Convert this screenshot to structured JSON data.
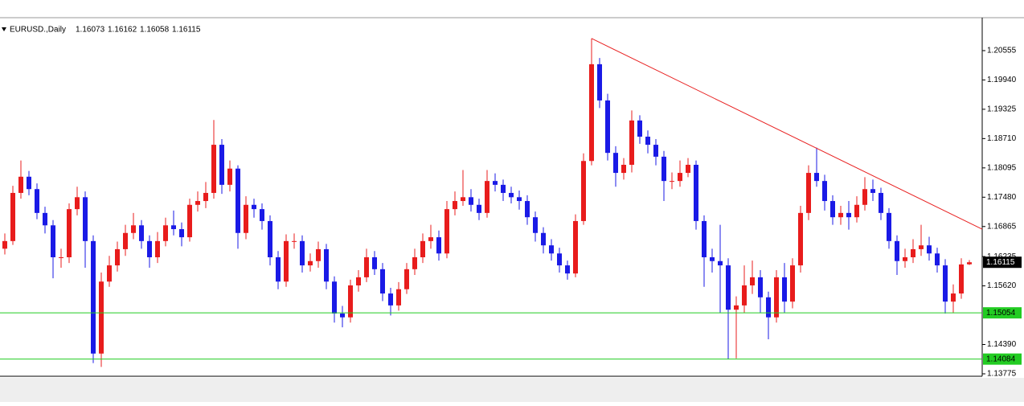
{
  "chart_data": {
    "type": "candlestick",
    "title": "EURUSD.,Daily",
    "open": [
      1.164,
      1.1656,
      1.1757,
      1.1791,
      1.1765,
      1.1715,
      1.1689,
      1.1622,
      1.1622,
      1.1723,
      1.1748,
      1.1656,
      1.142,
      1.1571,
      1.1605,
      1.1639,
      1.1673,
      1.1689,
      1.1656,
      1.1622,
      1.1656,
      1.1689,
      1.1681,
      1.1664,
      1.1732,
      1.174,
      1.1757,
      1.1858,
      1.1774,
      1.1808,
      1.1673,
      1.1732,
      1.1723,
      1.1698,
      1.1622,
      1.1571,
      1.1656,
      1.1656,
      1.1605,
      1.1614,
      1.1639,
      1.1571,
      1.1504,
      1.1496,
      1.1563,
      1.158,
      1.1622,
      1.1597,
      1.1546,
      1.1521,
      1.1555,
      1.1597,
      1.1622,
      1.1656,
      1.1664,
      1.163,
      1.1723,
      1.174,
      1.1748,
      1.1732,
      1.1715,
      1.1782,
      1.1774,
      1.1757,
      1.1748,
      1.174,
      1.1706,
      1.1673,
      1.1647,
      1.163,
      1.1605,
      1.1588,
      1.1698,
      1.1824,
      1.2027,
      1.1951,
      1.1841,
      1.1799,
      1.1816,
      1.1909,
      1.1875,
      1.1858,
      1.1833,
      1.1782,
      1.1782,
      1.1799,
      1.1816,
      1.1698,
      1.1622,
      1.1614,
      1.1605,
      1.1512,
      1.1521,
      1.1563,
      1.158,
      1.1538,
      1.1496,
      1.158,
      1.1529,
      1.1605,
      1.1715,
      1.1799,
      1.1782,
      1.174,
      1.1706,
      1.1715,
      1.1706,
      1.1732,
      1.1765,
      1.1757,
      1.1715,
      1.1656,
      1.1614,
      1.1622,
      1.1639,
      1.1647,
      1.163,
      1.1605,
      1.1529,
      1.1546,
      1.16073
    ],
    "high": [
      1.1672,
      1.1772,
      1.1825,
      1.1803,
      1.1777,
      1.1728,
      1.17,
      1.164,
      1.1735,
      1.177,
      1.176,
      1.1668,
      1.159,
      1.1625,
      1.1655,
      1.169,
      1.1715,
      1.17,
      1.1668,
      1.1675,
      1.1705,
      1.172,
      1.1695,
      1.1745,
      1.176,
      1.178,
      1.191,
      1.187,
      1.1825,
      1.1815,
      1.175,
      1.1745,
      1.1735,
      1.171,
      1.1635,
      1.167,
      1.1672,
      1.1668,
      1.163,
      1.1655,
      1.165,
      1.1582,
      1.152,
      1.1575,
      1.1595,
      1.164,
      1.1635,
      1.161,
      1.1558,
      1.157,
      1.161,
      1.164,
      1.1672,
      1.169,
      1.1678,
      1.174,
      1.176,
      1.1805,
      1.1765,
      1.1745,
      1.1805,
      1.1798,
      1.1785,
      1.177,
      1.1762,
      1.1752,
      1.1718,
      1.1685,
      1.166,
      1.1642,
      1.1615,
      1.1712,
      1.184,
      1.2081,
      1.204,
      1.1965,
      1.1855,
      1.183,
      1.193,
      1.192,
      1.1888,
      1.187,
      1.1845,
      1.18,
      1.1825,
      1.183,
      1.1825,
      1.171,
      1.164,
      1.169,
      1.162,
      1.154,
      1.1605,
      1.1615,
      1.1595,
      1.155,
      1.1595,
      1.161,
      1.162,
      1.173,
      1.1815,
      1.1852,
      1.1795,
      1.1752,
      1.173,
      1.174,
      1.175,
      1.179,
      1.1785,
      1.1768,
      1.1725,
      1.1668,
      1.164,
      1.166,
      1.169,
      1.1665,
      1.1642,
      1.1618,
      1.1565,
      1.162,
      1.16162
    ],
    "low": [
      1.1628,
      1.1648,
      1.1745,
      1.1752,
      1.1702,
      1.1672,
      1.1578,
      1.16,
      1.161,
      1.171,
      1.16,
      1.14,
      1.1392,
      1.156,
      1.1592,
      1.1625,
      1.166,
      1.164,
      1.16,
      1.161,
      1.1645,
      1.1668,
      1.1645,
      1.1655,
      1.1718,
      1.1725,
      1.1745,
      1.1755,
      1.176,
      1.164,
      1.166,
      1.1705,
      1.168,
      1.1605,
      1.1555,
      1.156,
      1.164,
      1.159,
      1.1592,
      1.16,
      1.1555,
      1.1485,
      1.1475,
      1.1485,
      1.155,
      1.157,
      1.1585,
      1.153,
      1.15,
      1.151,
      1.1545,
      1.1585,
      1.161,
      1.164,
      1.1615,
      1.162,
      1.171,
      1.173,
      1.1718,
      1.17,
      1.1705,
      1.176,
      1.174,
      1.1735,
      1.1722,
      1.169,
      1.1655,
      1.163,
      1.1615,
      1.159,
      1.1575,
      1.158,
      1.169,
      1.1815,
      1.1935,
      1.1825,
      1.177,
      1.1785,
      1.18,
      1.186,
      1.184,
      1.1815,
      1.174,
      1.1765,
      1.177,
      1.179,
      1.168,
      1.156,
      1.159,
      1.1505,
      1.1408,
      1.141,
      1.1505,
      1.1545,
      1.1505,
      1.145,
      1.1485,
      1.1505,
      1.1515,
      1.159,
      1.17,
      1.177,
      1.172,
      1.169,
      1.169,
      1.168,
      1.1695,
      1.172,
      1.174,
      1.17,
      1.164,
      1.1585,
      1.16,
      1.161,
      1.1625,
      1.1615,
      1.159,
      1.1504,
      1.1505,
      1.1535,
      1.16058
    ],
    "close": [
      1.1656,
      1.1757,
      1.1791,
      1.1765,
      1.1715,
      1.1689,
      1.1622,
      1.1622,
      1.1723,
      1.1748,
      1.1656,
      1.142,
      1.1571,
      1.1605,
      1.1639,
      1.1673,
      1.1689,
      1.1656,
      1.1622,
      1.1656,
      1.1689,
      1.1681,
      1.1664,
      1.1732,
      1.174,
      1.1757,
      1.1858,
      1.1774,
      1.1808,
      1.1673,
      1.1732,
      1.1723,
      1.1698,
      1.1622,
      1.1571,
      1.1656,
      1.1656,
      1.1605,
      1.1614,
      1.1639,
      1.1571,
      1.1504,
      1.1496,
      1.1563,
      1.158,
      1.1622,
      1.1597,
      1.1546,
      1.1521,
      1.1555,
      1.1597,
      1.1622,
      1.1656,
      1.1664,
      1.163,
      1.1723,
      1.174,
      1.1748,
      1.1732,
      1.1715,
      1.1782,
      1.1774,
      1.1757,
      1.1748,
      1.174,
      1.1706,
      1.1673,
      1.1647,
      1.163,
      1.1605,
      1.1588,
      1.1698,
      1.1824,
      1.2027,
      1.1951,
      1.1841,
      1.1799,
      1.1816,
      1.1909,
      1.1875,
      1.1858,
      1.1833,
      1.1782,
      1.1782,
      1.1799,
      1.1816,
      1.1698,
      1.1622,
      1.1614,
      1.1605,
      1.1512,
      1.1521,
      1.1563,
      1.158,
      1.1538,
      1.1496,
      1.158,
      1.1529,
      1.1605,
      1.1715,
      1.1799,
      1.1782,
      1.174,
      1.1706,
      1.1715,
      1.1706,
      1.1732,
      1.1765,
      1.1757,
      1.1715,
      1.1656,
      1.1614,
      1.1622,
      1.1639,
      1.1647,
      1.163,
      1.1605,
      1.1529,
      1.1546,
      1.1607,
      1.16115
    ],
    "up_color": "#e81c1c",
    "down_color": "#1a1ae6",
    "ylim": [
      1.13724,
      1.21246
    ],
    "yticks": [
      1.20555,
      {
        "value": 1.1994,
        "label": "1.19940"
      },
      1.19325,
      {
        "value": 1.1871,
        "label": "1.18710"
      },
      1.18095,
      {
        "value": 1.1748,
        "label": "1.17480"
      },
      1.16865,
      1.16235,
      {
        "value": 1.1562,
        "label": "1.15620"
      },
      {
        "value": 1.1439,
        "label": "1.14390"
      },
      1.13775
    ],
    "hlines": [
      {
        "value": 1.15054,
        "color": "#22cc22"
      },
      {
        "value": 1.14084,
        "color": "#22cc22"
      }
    ],
    "trendline": {
      "color": "#e82020",
      "x": [
        73,
        121.6
      ],
      "y": [
        1.2081,
        1.1681
      ]
    }
  }
}
